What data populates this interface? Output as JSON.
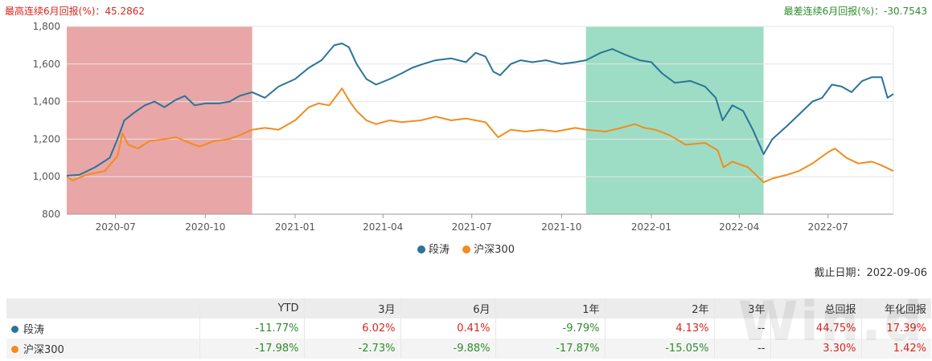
{
  "header": {
    "best_streak": "最高连续6月回报(%)：45.2862",
    "worst_streak": "最差连续6月回报(%)：-30.7543"
  },
  "colors": {
    "fund": "#2b7499",
    "index": "#f28c1e",
    "red_band": "#d65c5c",
    "green_band": "#3dbb8c",
    "positive": "#d6261f",
    "negative": "#2e8b2e"
  },
  "chart_data": {
    "type": "line",
    "ylim": [
      800,
      1800
    ],
    "yticks": [
      800,
      1000,
      1200,
      1400,
      1600,
      1800
    ],
    "ytick_labels": [
      "800",
      "1,000",
      "1,200",
      "1,400",
      "1,600",
      "1,800"
    ],
    "xlim": [
      "2020-05-12",
      "2022-09-06"
    ],
    "xticks": [
      {
        "date": "2020-07-01",
        "label": "2020-07"
      },
      {
        "date": "2020-10-01",
        "label": "2020-10"
      },
      {
        "date": "2021-01-01",
        "label": "2021-01"
      },
      {
        "date": "2021-04-01",
        "label": "2021-04"
      },
      {
        "date": "2021-07-01",
        "label": "2021-07"
      },
      {
        "date": "2021-10-01",
        "label": "2021-10"
      },
      {
        "date": "2022-01-01",
        "label": "2022-01"
      },
      {
        "date": "2022-04-01",
        "label": "2022-04"
      },
      {
        "date": "2022-07-01",
        "label": "2022-07"
      }
    ],
    "highlight_bands": [
      {
        "start": "2020-05-12",
        "end": "2020-11-18",
        "kind": "best"
      },
      {
        "start": "2021-10-26",
        "end": "2022-04-26",
        "kind": "worst"
      }
    ],
    "series": [
      {
        "name": "段涛",
        "points": [
          [
            "2020-05-12",
            1005
          ],
          [
            "2020-05-25",
            1010
          ],
          [
            "2020-06-10",
            1050
          ],
          [
            "2020-06-25",
            1100
          ],
          [
            "2020-07-03",
            1200
          ],
          [
            "2020-07-10",
            1300
          ],
          [
            "2020-07-20",
            1340
          ],
          [
            "2020-07-31",
            1380
          ],
          [
            "2020-08-10",
            1400
          ],
          [
            "2020-08-20",
            1370
          ],
          [
            "2020-09-01",
            1410
          ],
          [
            "2020-09-10",
            1430
          ],
          [
            "2020-09-20",
            1380
          ],
          [
            "2020-10-01",
            1390
          ],
          [
            "2020-10-15",
            1390
          ],
          [
            "2020-10-26",
            1400
          ],
          [
            "2020-11-05",
            1430
          ],
          [
            "2020-11-18",
            1450
          ],
          [
            "2020-12-01",
            1420
          ],
          [
            "2020-12-15",
            1480
          ],
          [
            "2021-01-01",
            1520
          ],
          [
            "2021-01-15",
            1580
          ],
          [
            "2021-01-28",
            1620
          ],
          [
            "2021-02-10",
            1700
          ],
          [
            "2021-02-18",
            1710
          ],
          [
            "2021-02-25",
            1690
          ],
          [
            "2021-03-05",
            1600
          ],
          [
            "2021-03-15",
            1520
          ],
          [
            "2021-03-25",
            1490
          ],
          [
            "2021-04-08",
            1520
          ],
          [
            "2021-04-20",
            1550
          ],
          [
            "2021-05-01",
            1580
          ],
          [
            "2021-05-12",
            1600
          ],
          [
            "2021-05-25",
            1620
          ],
          [
            "2021-06-10",
            1630
          ],
          [
            "2021-06-25",
            1610
          ],
          [
            "2021-07-05",
            1660
          ],
          [
            "2021-07-15",
            1640
          ],
          [
            "2021-07-23",
            1560
          ],
          [
            "2021-07-30",
            1540
          ],
          [
            "2021-08-10",
            1600
          ],
          [
            "2021-08-20",
            1620
          ],
          [
            "2021-09-01",
            1610
          ],
          [
            "2021-09-15",
            1620
          ],
          [
            "2021-10-01",
            1600
          ],
          [
            "2021-10-15",
            1610
          ],
          [
            "2021-10-26",
            1620
          ],
          [
            "2021-11-10",
            1660
          ],
          [
            "2021-11-22",
            1680
          ],
          [
            "2021-12-05",
            1650
          ],
          [
            "2021-12-20",
            1620
          ],
          [
            "2022-01-01",
            1610
          ],
          [
            "2022-01-12",
            1550
          ],
          [
            "2022-01-25",
            1500
          ],
          [
            "2022-02-10",
            1510
          ],
          [
            "2022-02-25",
            1480
          ],
          [
            "2022-03-08",
            1420
          ],
          [
            "2022-03-15",
            1300
          ],
          [
            "2022-03-25",
            1380
          ],
          [
            "2022-04-05",
            1350
          ],
          [
            "2022-04-15",
            1250
          ],
          [
            "2022-04-26",
            1120
          ],
          [
            "2022-05-05",
            1200
          ],
          [
            "2022-05-20",
            1270
          ],
          [
            "2022-06-01",
            1330
          ],
          [
            "2022-06-15",
            1400
          ],
          [
            "2022-06-25",
            1420
          ],
          [
            "2022-07-05",
            1490
          ],
          [
            "2022-07-15",
            1480
          ],
          [
            "2022-07-25",
            1450
          ],
          [
            "2022-08-05",
            1510
          ],
          [
            "2022-08-15",
            1530
          ],
          [
            "2022-08-25",
            1530
          ],
          [
            "2022-08-31",
            1420
          ],
          [
            "2022-09-06",
            1440
          ]
        ]
      },
      {
        "name": "沪深300",
        "points": [
          [
            "2020-05-12",
            1000
          ],
          [
            "2020-05-18",
            980
          ],
          [
            "2020-06-01",
            1010
          ],
          [
            "2020-06-20",
            1030
          ],
          [
            "2020-07-03",
            1110
          ],
          [
            "2020-07-08",
            1230
          ],
          [
            "2020-07-14",
            1170
          ],
          [
            "2020-07-24",
            1150
          ],
          [
            "2020-08-05",
            1190
          ],
          [
            "2020-08-20",
            1200
          ],
          [
            "2020-09-01",
            1210
          ],
          [
            "2020-09-15",
            1180
          ],
          [
            "2020-09-25",
            1160
          ],
          [
            "2020-10-10",
            1190
          ],
          [
            "2020-10-25",
            1200
          ],
          [
            "2020-11-05",
            1220
          ],
          [
            "2020-11-18",
            1250
          ],
          [
            "2020-12-01",
            1260
          ],
          [
            "2020-12-15",
            1250
          ],
          [
            "2021-01-01",
            1300
          ],
          [
            "2021-01-15",
            1370
          ],
          [
            "2021-01-25",
            1390
          ],
          [
            "2021-02-05",
            1380
          ],
          [
            "2021-02-18",
            1470
          ],
          [
            "2021-02-26",
            1400
          ],
          [
            "2021-03-05",
            1350
          ],
          [
            "2021-03-15",
            1300
          ],
          [
            "2021-03-25",
            1280
          ],
          [
            "2021-04-08",
            1300
          ],
          [
            "2021-04-20",
            1290
          ],
          [
            "2021-05-10",
            1300
          ],
          [
            "2021-05-25",
            1320
          ],
          [
            "2021-06-10",
            1300
          ],
          [
            "2021-06-25",
            1310
          ],
          [
            "2021-07-05",
            1300
          ],
          [
            "2021-07-15",
            1290
          ],
          [
            "2021-07-28",
            1210
          ],
          [
            "2021-08-10",
            1250
          ],
          [
            "2021-08-25",
            1240
          ],
          [
            "2021-09-10",
            1250
          ],
          [
            "2021-09-25",
            1240
          ],
          [
            "2021-10-15",
            1260
          ],
          [
            "2021-10-26",
            1250
          ],
          [
            "2021-11-15",
            1240
          ],
          [
            "2021-12-01",
            1260
          ],
          [
            "2021-12-15",
            1280
          ],
          [
            "2021-12-25",
            1260
          ],
          [
            "2022-01-05",
            1250
          ],
          [
            "2022-01-20",
            1220
          ],
          [
            "2022-02-05",
            1170
          ],
          [
            "2022-02-25",
            1180
          ],
          [
            "2022-03-10",
            1140
          ],
          [
            "2022-03-16",
            1050
          ],
          [
            "2022-03-25",
            1080
          ],
          [
            "2022-04-10",
            1050
          ],
          [
            "2022-04-26",
            970
          ],
          [
            "2022-05-05",
            990
          ],
          [
            "2022-05-20",
            1010
          ],
          [
            "2022-06-01",
            1030
          ],
          [
            "2022-06-15",
            1070
          ],
          [
            "2022-07-01",
            1130
          ],
          [
            "2022-07-08",
            1150
          ],
          [
            "2022-07-20",
            1100
          ],
          [
            "2022-08-01",
            1070
          ],
          [
            "2022-08-15",
            1080
          ],
          [
            "2022-08-25",
            1060
          ],
          [
            "2022-09-06",
            1030
          ]
        ]
      }
    ]
  },
  "cutoff_date": "截止日期：2022-09-06",
  "table": {
    "headers": [
      "",
      "YTD",
      "3月",
      "6月",
      "1年",
      "2年",
      "3年",
      "总回报",
      "年化回报"
    ],
    "rows": [
      {
        "name": "段涛",
        "cells": [
          "-11.77%",
          "6.02%",
          "0.41%",
          "-9.79%",
          "4.13%",
          "--",
          "44.75%",
          "17.39%"
        ]
      },
      {
        "name": "沪深300",
        "cells": [
          "-17.98%",
          "-2.73%",
          "-9.88%",
          "-17.87%",
          "-15.05%",
          "--",
          "3.30%",
          "1.42%"
        ]
      }
    ]
  },
  "watermark": "Win.d"
}
